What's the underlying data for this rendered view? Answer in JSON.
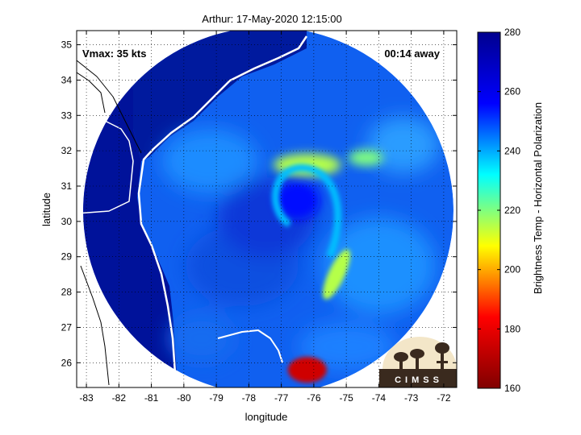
{
  "chart_data": {
    "type": "heatmap",
    "title": "Arthur: 17-May-2020 12:15:00",
    "xlabel": "longitude",
    "ylabel": "latitude",
    "xlim": [
      -83.3,
      -71.6
    ],
    "ylim": [
      25.3,
      35.4
    ],
    "x_ticks": [
      -83,
      -82,
      -81,
      -80,
      -79,
      -78,
      -77,
      -76,
      -75,
      -74,
      -73,
      -72
    ],
    "y_ticks": [
      26,
      27,
      28,
      29,
      30,
      31,
      32,
      33,
      34,
      35
    ],
    "grid": true,
    "swath": {
      "center_lon": -77.4,
      "center_lat": 30.3,
      "radius_lon": 5.7,
      "radius_lat": 5.2
    },
    "colorbar": {
      "label": "Brightness Temp - Horizontal Polarization",
      "range": [
        160,
        280
      ],
      "ticks": [
        160,
        180,
        200,
        220,
        240,
        260,
        280
      ],
      "colormap": [
        "#800000",
        "#ff0000",
        "#ffff00",
        "#00ffff",
        "#0000ff",
        "#00008f"
      ]
    },
    "annotations": {
      "vmax": "Vmax: 35 kts",
      "time_away": "00:14 away"
    },
    "features": [
      {
        "name": "eye-region",
        "lon": -76.5,
        "lat": 30.6,
        "value": 255
      },
      {
        "name": "north-band",
        "lon": -76.2,
        "lat": 31.6,
        "value": 215
      },
      {
        "name": "east-band",
        "lon": -75.3,
        "lat": 28.5,
        "value": 215
      },
      {
        "name": "ne-band",
        "lon": -74.4,
        "lat": 31.8,
        "value": 220
      },
      {
        "name": "south-convection",
        "lon": -76.2,
        "lat": 25.8,
        "value": 175
      }
    ]
  },
  "logo": {
    "text": "CIMSS"
  }
}
